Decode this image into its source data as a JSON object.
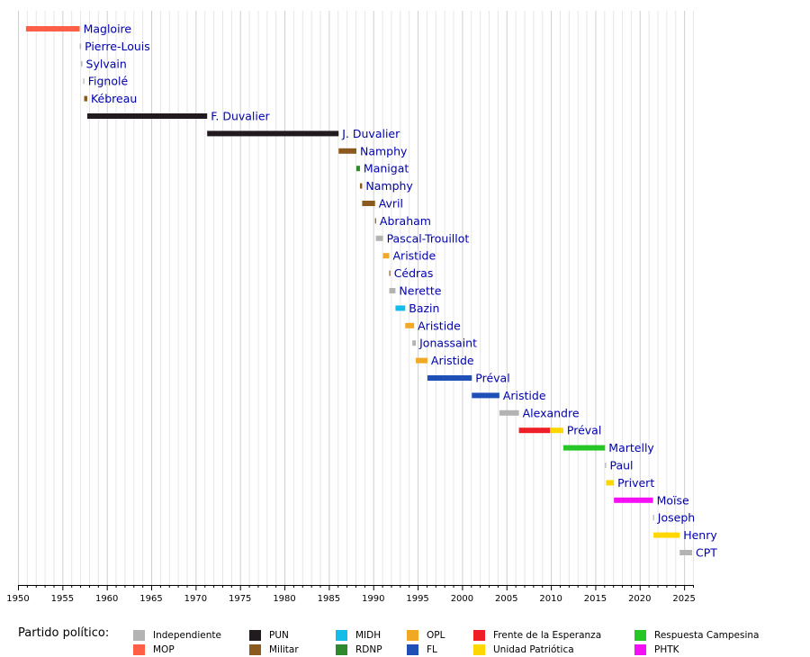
{
  "chart_data": {
    "type": "timeline",
    "x_axis": {
      "range": [
        1950,
        2026
      ],
      "ticks": [
        1950,
        1955,
        1960,
        1965,
        1970,
        1975,
        1980,
        1985,
        1990,
        1995,
        2000,
        2005,
        2010,
        2015,
        2020,
        2025
      ],
      "grid": "yearly vertical lines"
    },
    "legend": {
      "title": "Partido político:",
      "placement": "bottom",
      "entries": [
        {
          "key": "independiente",
          "label": "Independiente",
          "color": "#b3b3b3"
        },
        {
          "key": "mop",
          "label": "MOP",
          "color": "#ff5f44"
        },
        {
          "key": "pun",
          "label": "PUN",
          "color": "#211b20"
        },
        {
          "key": "militar",
          "label": "Militar",
          "color": "#8b5a1e"
        },
        {
          "key": "midh",
          "label": "MIDH",
          "color": "#14bcea"
        },
        {
          "key": "rdnp",
          "label": "RDNP",
          "color": "#2f8a2d"
        },
        {
          "key": "opl",
          "label": "OPL",
          "color": "#f1a824"
        },
        {
          "key": "fl",
          "label": "FL",
          "color": "#1f50b8"
        },
        {
          "key": "frente",
          "label": "Frente de la Esperanza",
          "color": "#ee1f26"
        },
        {
          "key": "unidad",
          "label": "Unidad Patriótica",
          "color": "#ffd700"
        },
        {
          "key": "campesina",
          "label": "Respuesta Campesina",
          "color": "#25c626"
        },
        {
          "key": "phtk",
          "label": "PHTK",
          "color": "#f40ff4"
        }
      ]
    },
    "rows": [
      {
        "label": "Magloire",
        "segments": [
          {
            "start": 1950.9,
            "end": 1956.95,
            "party": "mop"
          }
        ]
      },
      {
        "label": "Pierre-Louis",
        "segments": [
          {
            "start": 1956.95,
            "end": 1957.1,
            "party": "independiente"
          }
        ]
      },
      {
        "label": "Sylvain",
        "segments": [
          {
            "start": 1957.1,
            "end": 1957.25,
            "party": "independiente"
          }
        ]
      },
      {
        "label": "Fignolé",
        "segments": [
          {
            "start": 1957.35,
            "end": 1957.42,
            "party": "independiente"
          }
        ]
      },
      {
        "label": "Kébreau",
        "segments": [
          {
            "start": 1957.45,
            "end": 1957.8,
            "party": "militar"
          }
        ]
      },
      {
        "label": "F. Duvalier",
        "segments": [
          {
            "start": 1957.8,
            "end": 1971.3,
            "party": "pun"
          }
        ]
      },
      {
        "label": "J. Duvalier",
        "segments": [
          {
            "start": 1971.3,
            "end": 1986.1,
            "party": "pun"
          }
        ]
      },
      {
        "label": "Namphy",
        "segments": [
          {
            "start": 1986.1,
            "end": 1988.1,
            "party": "militar"
          }
        ]
      },
      {
        "label": "Manigat",
        "segments": [
          {
            "start": 1988.1,
            "end": 1988.5,
            "party": "rdnp"
          }
        ]
      },
      {
        "label": "Namphy",
        "segments": [
          {
            "start": 1988.5,
            "end": 1988.75,
            "party": "militar"
          }
        ]
      },
      {
        "label": "Avril",
        "segments": [
          {
            "start": 1988.75,
            "end": 1990.2,
            "party": "militar"
          }
        ]
      },
      {
        "label": "Abraham",
        "segments": [
          {
            "start": 1990.2,
            "end": 1990.3,
            "party": "militar"
          }
        ]
      },
      {
        "label": "Pascal-Trouillot",
        "segments": [
          {
            "start": 1990.3,
            "end": 1991.1,
            "party": "independiente"
          }
        ]
      },
      {
        "label": "Aristide",
        "segments": [
          {
            "start": 1991.1,
            "end": 1991.8,
            "party": "opl"
          }
        ]
      },
      {
        "label": "Cédras",
        "segments": [
          {
            "start": 1991.8,
            "end": 1991.9,
            "party": "militar"
          }
        ]
      },
      {
        "label": "Nerette",
        "segments": [
          {
            "start": 1991.8,
            "end": 1992.5,
            "party": "independiente"
          }
        ]
      },
      {
        "label": "Bazin",
        "segments": [
          {
            "start": 1992.5,
            "end": 1993.6,
            "party": "midh"
          }
        ]
      },
      {
        "label": "Aristide",
        "segments": [
          {
            "start": 1993.6,
            "end": 1994.6,
            "party": "opl"
          }
        ]
      },
      {
        "label": "Jonassaint",
        "segments": [
          {
            "start": 1994.4,
            "end": 1994.8,
            "party": "independiente"
          }
        ]
      },
      {
        "label": "Aristide",
        "segments": [
          {
            "start": 1994.8,
            "end": 1996.1,
            "party": "opl"
          }
        ]
      },
      {
        "label": "Préval",
        "segments": [
          {
            "start": 1996.1,
            "end": 2001.1,
            "party": "fl"
          }
        ]
      },
      {
        "label": "Aristide",
        "segments": [
          {
            "start": 2001.1,
            "end": 2004.2,
            "party": "fl"
          }
        ]
      },
      {
        "label": "Alexandre",
        "segments": [
          {
            "start": 2004.2,
            "end": 2006.4,
            "party": "independiente"
          }
        ]
      },
      {
        "label": "Préval",
        "segments": [
          {
            "start": 2006.4,
            "end": 2009.9,
            "party": "frente"
          },
          {
            "start": 2009.9,
            "end": 2011.4,
            "party": "unidad"
          }
        ]
      },
      {
        "label": "Martelly",
        "segments": [
          {
            "start": 2011.4,
            "end": 2016.1,
            "party": "campesina"
          }
        ]
      },
      {
        "label": "Paul",
        "segments": [
          {
            "start": 2016.1,
            "end": 2016.2,
            "party": "independiente"
          }
        ]
      },
      {
        "label": "Privert",
        "segments": [
          {
            "start": 2016.2,
            "end": 2017.1,
            "party": "unidad"
          }
        ]
      },
      {
        "label": "Moïse",
        "segments": [
          {
            "start": 2017.1,
            "end": 2021.5,
            "party": "phtk"
          }
        ]
      },
      {
        "label": "Joseph",
        "segments": [
          {
            "start": 2021.5,
            "end": 2021.55,
            "party": "independiente"
          }
        ]
      },
      {
        "label": "Henry",
        "segments": [
          {
            "start": 2021.55,
            "end": 2024.5,
            "party": "unidad"
          }
        ]
      },
      {
        "label": "CPT",
        "segments": [
          {
            "start": 2024.5,
            "end": 2025.9,
            "party": "independiente"
          }
        ]
      }
    ]
  }
}
